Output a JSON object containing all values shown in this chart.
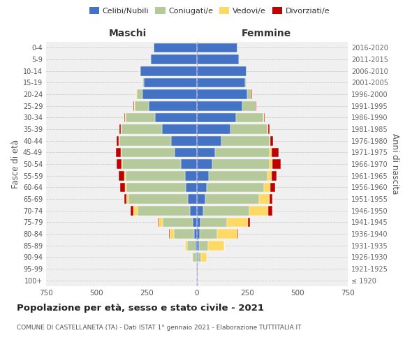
{
  "age_groups": [
    "100+",
    "95-99",
    "90-94",
    "85-89",
    "80-84",
    "75-79",
    "70-74",
    "65-69",
    "60-64",
    "55-59",
    "50-54",
    "45-49",
    "40-44",
    "35-39",
    "30-34",
    "25-29",
    "20-24",
    "15-19",
    "10-14",
    "5-9",
    "0-4"
  ],
  "birth_years": [
    "≤ 1920",
    "1921-1925",
    "1926-1930",
    "1931-1935",
    "1936-1940",
    "1941-1945",
    "1946-1950",
    "1951-1955",
    "1956-1960",
    "1961-1965",
    "1966-1970",
    "1971-1975",
    "1976-1980",
    "1981-1985",
    "1986-1990",
    "1991-1995",
    "1996-2000",
    "2001-2005",
    "2006-2010",
    "2011-2015",
    "2016-2020"
  ],
  "maschi": {
    "celibi": [
      2,
      2,
      5,
      8,
      15,
      20,
      35,
      45,
      55,
      60,
      80,
      110,
      130,
      175,
      210,
      240,
      270,
      265,
      280,
      230,
      215
    ],
    "coniugati": [
      1,
      3,
      15,
      40,
      100,
      150,
      260,
      295,
      295,
      295,
      290,
      265,
      255,
      200,
      145,
      70,
      30,
      5,
      3,
      2,
      1
    ],
    "vedovi": [
      0,
      0,
      5,
      10,
      20,
      20,
      20,
      10,
      8,
      5,
      5,
      3,
      3,
      2,
      2,
      2,
      1,
      0,
      0,
      0,
      0
    ],
    "divorziati": [
      0,
      0,
      0,
      0,
      3,
      5,
      15,
      10,
      25,
      30,
      25,
      25,
      10,
      8,
      5,
      3,
      2,
      0,
      0,
      0,
      0
    ]
  },
  "femmine": {
    "nubili": [
      2,
      2,
      5,
      10,
      15,
      18,
      30,
      40,
      50,
      60,
      75,
      90,
      120,
      165,
      195,
      225,
      250,
      240,
      245,
      210,
      200
    ],
    "coniugate": [
      1,
      3,
      15,
      45,
      85,
      130,
      230,
      270,
      285,
      290,
      285,
      270,
      240,
      185,
      135,
      65,
      20,
      5,
      2,
      1,
      1
    ],
    "vedove": [
      0,
      2,
      30,
      80,
      100,
      105,
      95,
      50,
      30,
      20,
      15,
      10,
      5,
      3,
      2,
      2,
      1,
      0,
      0,
      0,
      0
    ],
    "divorziate": [
      0,
      0,
      0,
      0,
      5,
      10,
      20,
      15,
      25,
      25,
      40,
      35,
      15,
      8,
      5,
      3,
      2,
      0,
      0,
      0,
      0
    ]
  },
  "colors": {
    "celibi_nubili": "#4472C4",
    "coniugati": "#B5C99A",
    "vedovi": "#FFD966",
    "divorziati": "#C00000"
  },
  "title": "Popolazione per età, sesso e stato civile - 2021",
  "subtitle": "COMUNE DI CASTELLANETA (TA) - Dati ISTAT 1° gennaio 2021 - Elaborazione TUTTITALIA.IT",
  "xlabel_left": "Maschi",
  "xlabel_right": "Femmine",
  "ylabel_left": "Fasce di età",
  "ylabel_right": "Anni di nascita",
  "xlim": 750,
  "bg_color": "#f0f0f0",
  "grid_color": "#cccccc"
}
